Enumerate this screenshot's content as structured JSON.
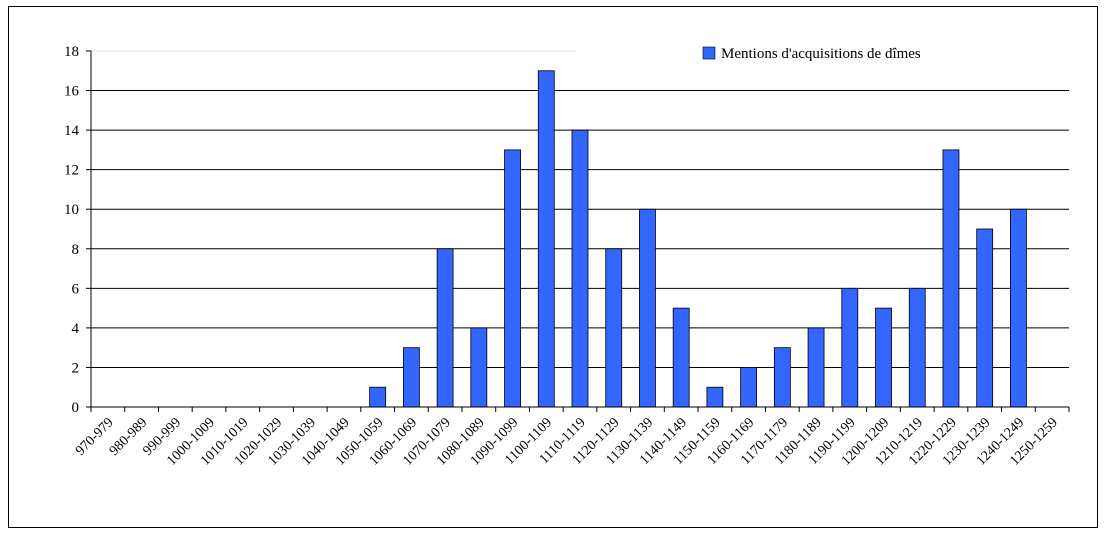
{
  "chart_data": {
    "type": "bar",
    "categories": [
      "970-979",
      "980-989",
      "990-999",
      "1000-1009",
      "1010-1019",
      "1020-1029",
      "1030-1039",
      "1040-1049",
      "1050-1059",
      "1060-1069",
      "1070-1079",
      "1080-1089",
      "1090-1099",
      "1100-1109",
      "1110-1119",
      "1120-1129",
      "1130-1139",
      "1140-1149",
      "1150-1159",
      "1160-1169",
      "1170-1179",
      "1180-1189",
      "1190-1199",
      "1200-1209",
      "1210-1219",
      "1220-1229",
      "1230-1239",
      "1240-1249",
      "1250-1259"
    ],
    "series": [
      {
        "name": "Mentions d'acquisitions de dîmes",
        "color": "#3366ff",
        "values": [
          0,
          0,
          0,
          0,
          0,
          0,
          0,
          0,
          1,
          3,
          8,
          4,
          13,
          17,
          14,
          8,
          10,
          5,
          1,
          2,
          3,
          4,
          6,
          5,
          6,
          13,
          9,
          10,
          0
        ]
      }
    ],
    "yticks": [
      0,
      2,
      4,
      6,
      8,
      10,
      12,
      14,
      16,
      18
    ],
    "ylim": [
      0,
      18
    ],
    "grid": true,
    "legend_position": "top-right",
    "title": "",
    "xlabel": "",
    "ylabel": ""
  }
}
